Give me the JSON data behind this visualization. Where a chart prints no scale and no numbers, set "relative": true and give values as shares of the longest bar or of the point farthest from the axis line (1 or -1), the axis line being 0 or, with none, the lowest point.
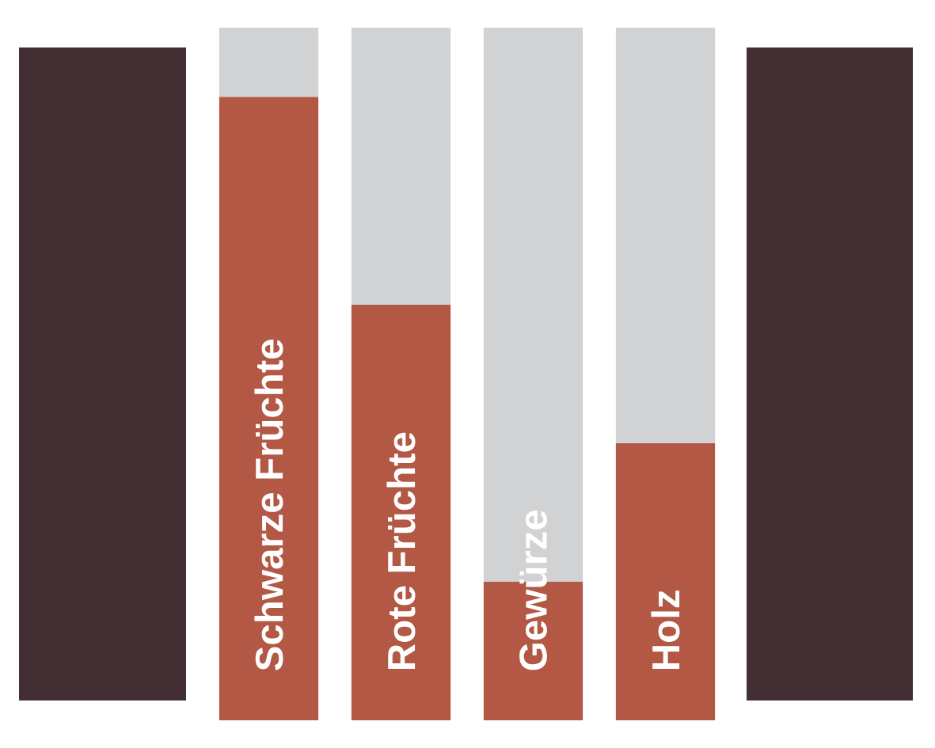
{
  "chart_data": {
    "type": "bar",
    "stacked": true,
    "relative": true,
    "categories": [
      "Schwarze Früchte",
      "Rote Früchte",
      "Gewürze",
      "Holz"
    ],
    "series": [
      {
        "color": "#b35844",
        "values": [
          0.9,
          0.6,
          0.2,
          0.4
        ]
      },
      {
        "color": "#d1d2d4",
        "values": [
          0.1,
          0.4,
          0.8,
          0.6
        ]
      }
    ]
  }
}
